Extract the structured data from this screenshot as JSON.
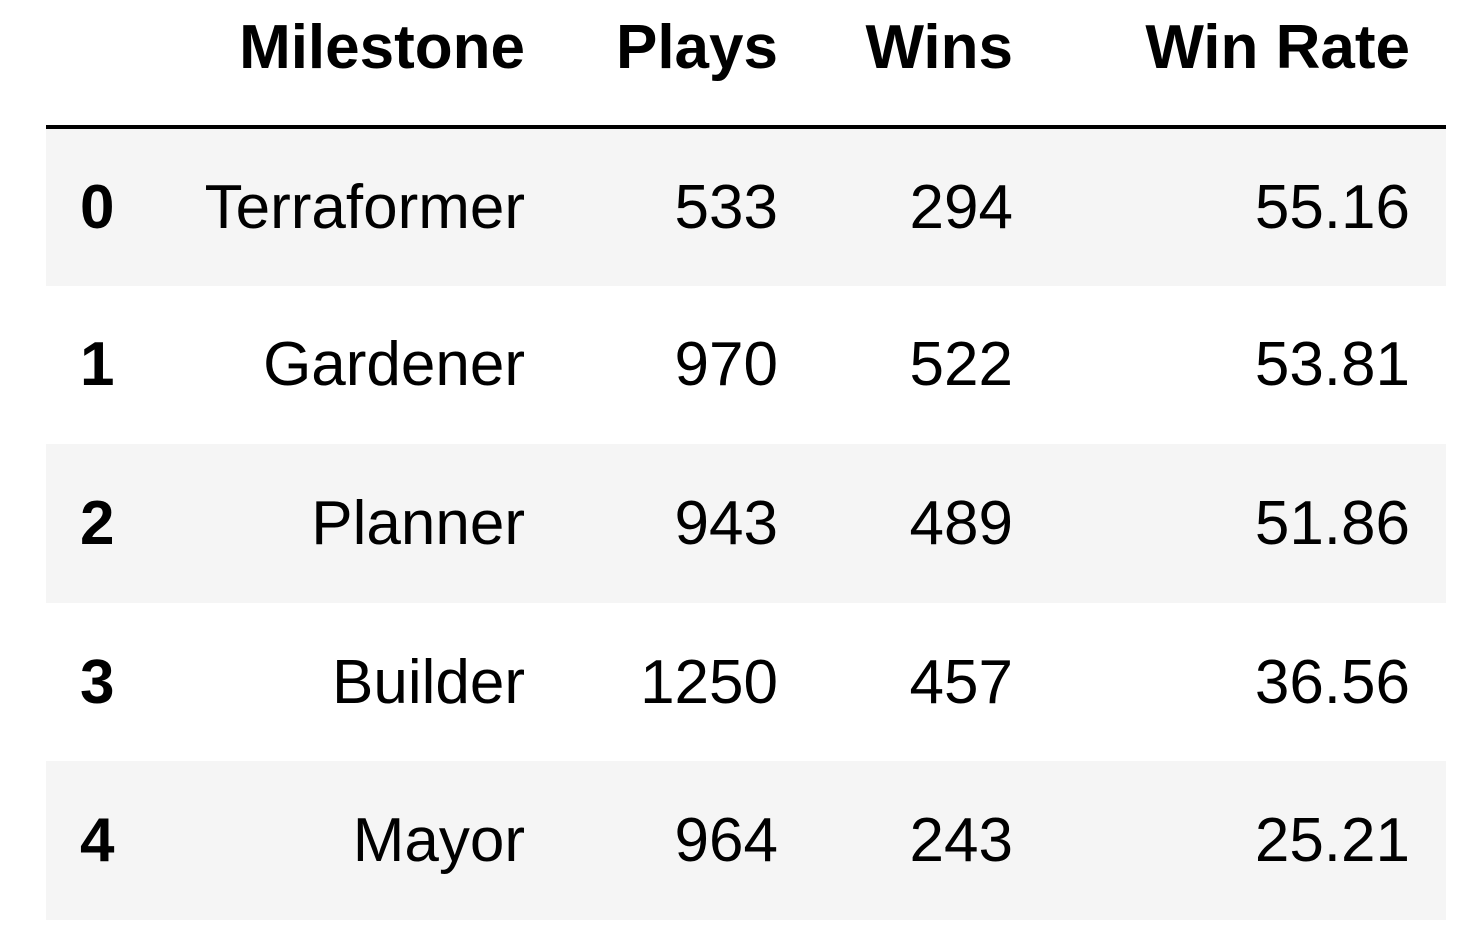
{
  "table": {
    "columns": [
      "",
      "Milestone",
      "Plays",
      "Wins",
      "Win Rate"
    ],
    "rows": [
      {
        "index": "0",
        "milestone": "Terraformer",
        "plays": "533",
        "wins": "294",
        "win_rate": "55.16"
      },
      {
        "index": "1",
        "milestone": "Gardener",
        "plays": "970",
        "wins": "522",
        "win_rate": "53.81"
      },
      {
        "index": "2",
        "milestone": "Planner",
        "plays": "943",
        "wins": "489",
        "win_rate": "51.86"
      },
      {
        "index": "3",
        "milestone": "Builder",
        "plays": "1250",
        "wins": "457",
        "win_rate": "36.56"
      },
      {
        "index": "4",
        "milestone": "Mayor",
        "plays": "964",
        "wins": "243",
        "win_rate": "25.21"
      }
    ]
  },
  "colors": {
    "header_rule": "#000000",
    "striped_row_bg": "#f5f5f5",
    "plain_row_bg": "#ffffff",
    "text": "#000000"
  }
}
